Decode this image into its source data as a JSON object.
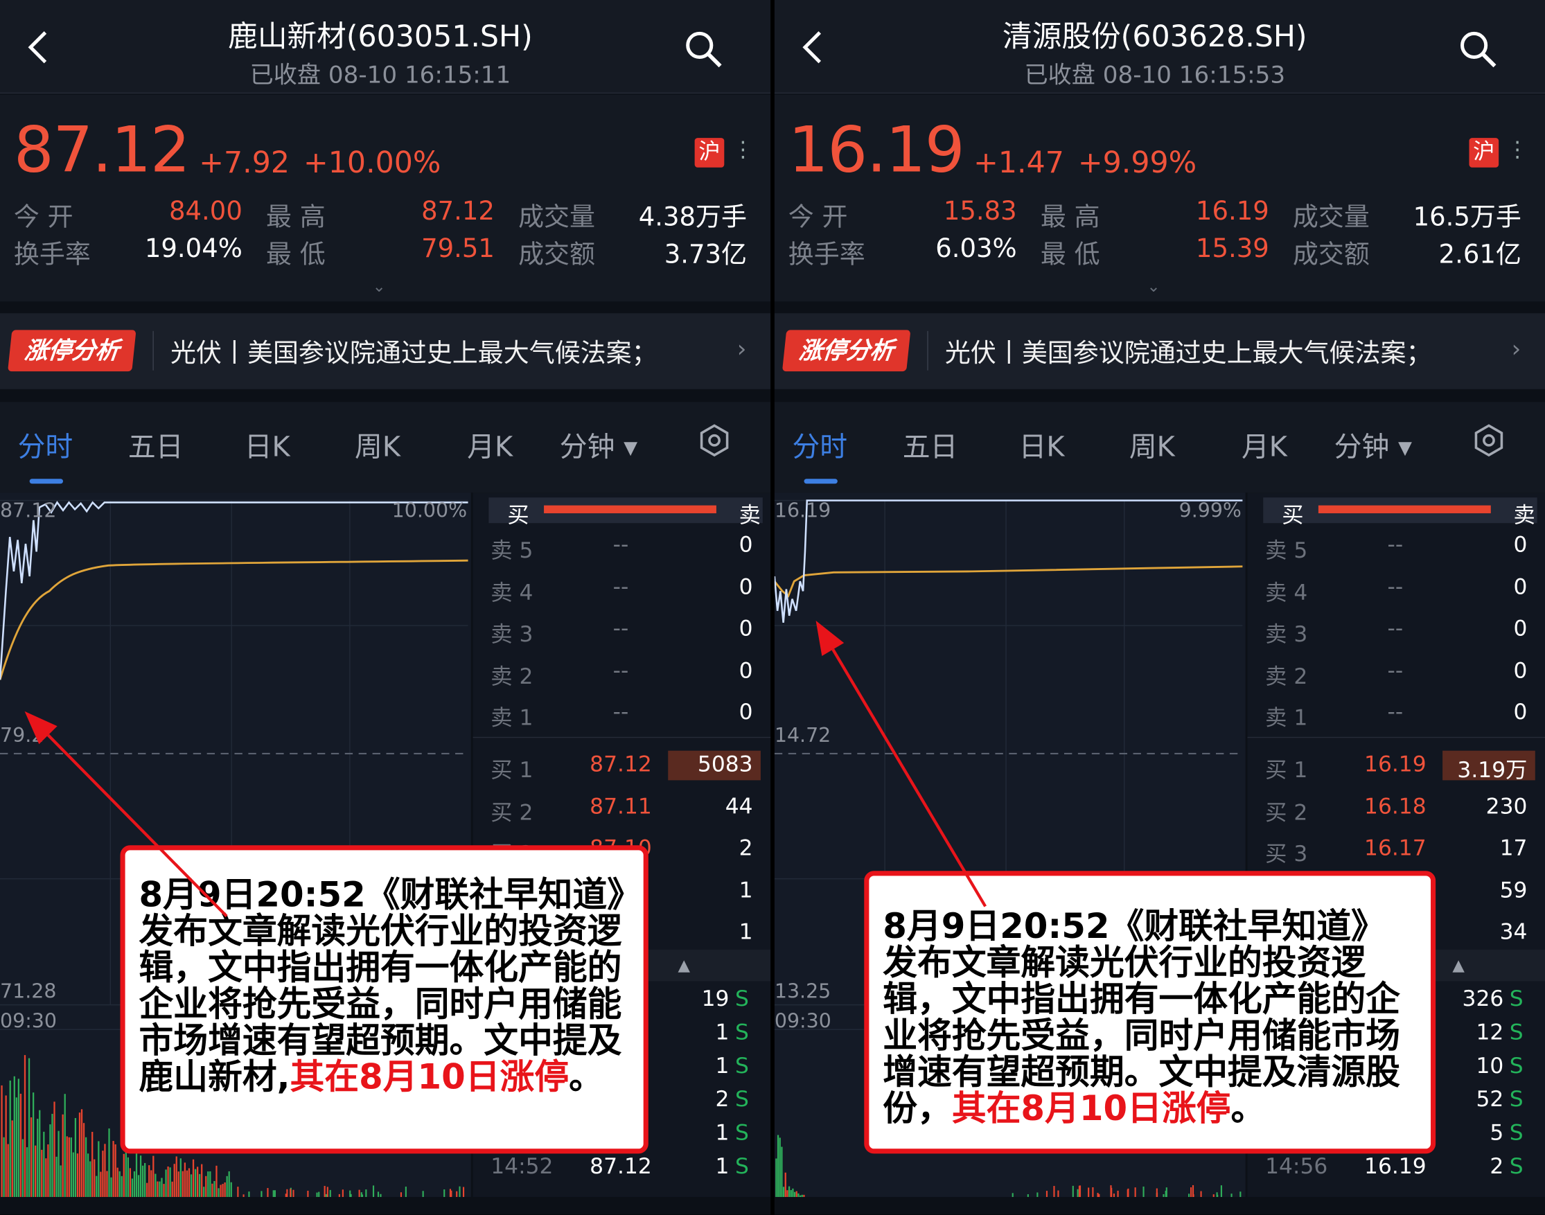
{
  "panels": [
    {
      "title": "鹿山新材(603051.SH)",
      "status": "已收盘 08-10 16:15:11",
      "price": "87.12",
      "change": "+7.92",
      "change_pct": "+10.00%",
      "exchange_badge": "沪",
      "stats": {
        "open_label": "今 开",
        "open": "84.00",
        "high_label": "最 高",
        "high": "87.12",
        "volume_label": "成交量",
        "volume": "4.38万手",
        "turnover_rate_label": "换手率",
        "turnover_rate": "19.04%",
        "low_label": "最 低",
        "low": "79.51",
        "amount_label": "成交额",
        "amount": "3.73亿"
      },
      "banner": {
        "badge": "涨停分析",
        "text": "光伏丨美国参议院通过史上最大气候法案；"
      },
      "tabs": [
        "分时",
        "五日",
        "日K",
        "周K",
        "月K",
        "分钟 ▾"
      ],
      "active_tab": "分时",
      "chart": {
        "top_price": "87.12",
        "top_pct": "10.00%",
        "mid_price": "79.2",
        "low_price": "71.28",
        "start_time": "09:30"
      },
      "orderbook": {
        "buy_label": "买",
        "sell_label": "卖",
        "asks": [
          {
            "label": "卖 5",
            "price": "--",
            "vol": "0"
          },
          {
            "label": "卖 4",
            "price": "--",
            "vol": "0"
          },
          {
            "label": "卖 3",
            "price": "--",
            "vol": "0"
          },
          {
            "label": "卖 2",
            "price": "--",
            "vol": "0"
          },
          {
            "label": "卖 1",
            "price": "--",
            "vol": "0"
          }
        ],
        "bids": [
          {
            "label": "买 1",
            "price": "87.12",
            "vol": "5083"
          },
          {
            "label": "买 2",
            "price": "87.11",
            "vol": "44"
          },
          {
            "label": "买 3",
            "price": "87.10",
            "vol": "2"
          },
          {
            "label": "",
            "price": "",
            "vol": "1"
          },
          {
            "label": "",
            "price": "",
            "vol": "1"
          }
        ],
        "trades": [
          {
            "time": "",
            "price": "",
            "vol": "19",
            "side": "S"
          },
          {
            "time": "",
            "price": "",
            "vol": "1",
            "side": "S"
          },
          {
            "time": "",
            "price": "",
            "vol": "1",
            "side": "S"
          },
          {
            "time": "",
            "price": "",
            "vol": "2",
            "side": "S"
          },
          {
            "time": "",
            "price": "",
            "vol": "1",
            "side": "S"
          },
          {
            "time": "14:52",
            "price": "87.12",
            "vol": "1",
            "side": "S"
          }
        ]
      },
      "annotation": {
        "text": "8月9日20:52《财联社早知道》发布文章解读光伏行业的投资逻辑，文中指出拥有一体化产能的企业将抢先受益，同时户用储能市场增速有望超预期。文中提及鹿山新材,",
        "highlight": "其在8月10日涨停",
        "end": "。"
      }
    },
    {
      "title": "清源股份(603628.SH)",
      "status": "已收盘 08-10 16:15:53",
      "price": "16.19",
      "change": "+1.47",
      "change_pct": "+9.99%",
      "exchange_badge": "沪",
      "stats": {
        "open_label": "今 开",
        "open": "15.83",
        "high_label": "最 高",
        "high": "16.19",
        "volume_label": "成交量",
        "volume": "16.5万手",
        "turnover_rate_label": "换手率",
        "turnover_rate": "6.03%",
        "low_label": "最 低",
        "low": "15.39",
        "amount_label": "成交额",
        "amount": "2.61亿"
      },
      "banner": {
        "badge": "涨停分析",
        "text": "光伏丨美国参议院通过史上最大气候法案；"
      },
      "tabs": [
        "分时",
        "五日",
        "日K",
        "周K",
        "月K",
        "分钟 ▾"
      ],
      "active_tab": "分时",
      "chart": {
        "top_price": "16.19",
        "top_pct": "9.99%",
        "mid_price": "14.72",
        "low_price": "13.25",
        "start_time": "09:30"
      },
      "orderbook": {
        "buy_label": "买",
        "sell_label": "卖",
        "asks": [
          {
            "label": "卖 5",
            "price": "--",
            "vol": "0"
          },
          {
            "label": "卖 4",
            "price": "--",
            "vol": "0"
          },
          {
            "label": "卖 3",
            "price": "--",
            "vol": "0"
          },
          {
            "label": "卖 2",
            "price": "--",
            "vol": "0"
          },
          {
            "label": "卖 1",
            "price": "--",
            "vol": "0"
          }
        ],
        "bids": [
          {
            "label": "买 1",
            "price": "16.19",
            "vol": "3.19万"
          },
          {
            "label": "买 2",
            "price": "16.18",
            "vol": "230"
          },
          {
            "label": "买 3",
            "price": "16.17",
            "vol": "17"
          },
          {
            "label": "",
            "price": "",
            "vol": "59"
          },
          {
            "label": "",
            "price": "",
            "vol": "34"
          }
        ],
        "trades": [
          {
            "time": "",
            "price": "",
            "vol": "326",
            "side": "S"
          },
          {
            "time": "",
            "price": "",
            "vol": "12",
            "side": "S"
          },
          {
            "time": "",
            "price": "",
            "vol": "10",
            "side": "S"
          },
          {
            "time": "",
            "price": "",
            "vol": "52",
            "side": "S"
          },
          {
            "time": "",
            "price": "",
            "vol": "5",
            "side": "S"
          },
          {
            "time": "14:56",
            "price": "16.19",
            "vol": "2",
            "side": "S"
          }
        ]
      },
      "annotation": {
        "text": "8月9日20:52《财联社早知道》发布文章解读光伏行业的投资逻辑，文中指出拥有一体化产能的企业将抢先受益，同时户用储能市场增速有望超预期。文中提及清源股份，",
        "highlight": "其在8月10日涨停",
        "end": "。"
      }
    }
  ],
  "colors": {
    "up": "#f0533b",
    "accent": "#3d7fe3",
    "price_line": "#cfe0ff",
    "avg_line": "#e0a53a",
    "sell_flag": "#23b35a",
    "annotation_border": "#e8141a"
  }
}
